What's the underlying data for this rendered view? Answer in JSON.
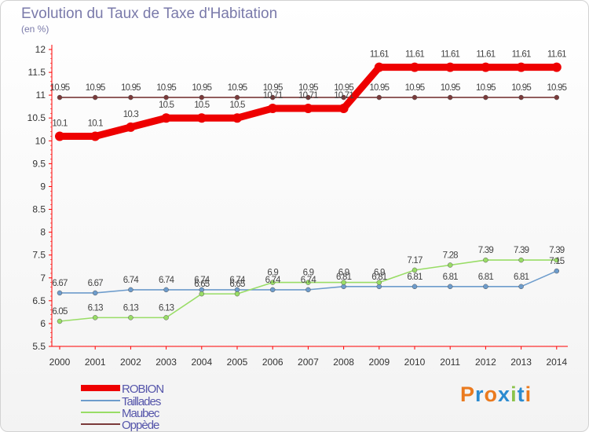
{
  "title": "Evolution du Taux de Taxe d'Habitation",
  "subtitle": "(en %)",
  "logo": {
    "text": "Proxiti",
    "letters": [
      "P",
      "r",
      "o",
      "x",
      "i",
      "t",
      "i"
    ],
    "colors": [
      "#ea7a1e",
      "#2b8bd0",
      "#ea7a1e",
      "#2b8bd0",
      "#8bc34a",
      "#2b8bd0",
      "#ea7a1e"
    ]
  },
  "chart_data": {
    "type": "line",
    "title": "Evolution du Taux de Taxe d'Habitation",
    "ylabel": "(en %)",
    "xlabel": "",
    "x": [
      "2000",
      "2001",
      "2002",
      "2003",
      "2004",
      "2005",
      "2006",
      "2007",
      "2008",
      "2009",
      "2010",
      "2011",
      "2012",
      "2013",
      "2014"
    ],
    "ylim": [
      5.5,
      12
    ],
    "yticks": [
      "5.5",
      "6",
      "6.5",
      "7",
      "7.5",
      "8",
      "8.5",
      "9",
      "9.5",
      "10",
      "10.5",
      "11",
      "11.5",
      "12"
    ],
    "grid": false,
    "legend": "bottom-left",
    "series": [
      {
        "name": "ROBION",
        "color": "#ee0000",
        "values": [
          10.1,
          10.1,
          10.3,
          10.5,
          10.5,
          10.5,
          10.71,
          10.71,
          10.71,
          11.61,
          11.61,
          11.61,
          11.61,
          11.61,
          11.61
        ],
        "labels": [
          "10.1",
          "10.1",
          "10.3",
          "10.5",
          "10.5",
          "10.5",
          "10.71",
          "10.71",
          "10.71",
          "11.61",
          "11.61",
          "11.61",
          "11.61",
          "11.61",
          "11.61"
        ]
      },
      {
        "name": "Taillades",
        "color": "#6d9ccc",
        "values": [
          6.67,
          6.67,
          6.74,
          6.74,
          6.74,
          6.74,
          6.74,
          6.74,
          6.81,
          6.81,
          6.81,
          6.81,
          6.81,
          6.81,
          7.15
        ],
        "labels": [
          "6.67",
          "6.67",
          "6.74",
          "6.74",
          "6.74",
          "6.74",
          "6.74",
          "6.74",
          "6.81",
          "6.81",
          "6.81",
          "6.81",
          "6.81",
          "6.81",
          "7.15"
        ]
      },
      {
        "name": "Maubec",
        "color": "#99dd66",
        "values": [
          6.05,
          6.13,
          6.13,
          6.13,
          6.65,
          6.65,
          6.9,
          6.9,
          6.9,
          6.9,
          7.17,
          7.28,
          7.39,
          7.39,
          7.39
        ],
        "labels": [
          "6.05",
          "6.13",
          "6.13",
          "6.13",
          "6.65",
          "6.65",
          "6.9",
          "6.9",
          "6.9",
          "6.9",
          "7.17",
          "7.28",
          "7.39",
          "7.39",
          "7.39"
        ]
      },
      {
        "name": "Oppède",
        "color": "#7a3a3a",
        "values": [
          10.95,
          10.95,
          10.95,
          10.95,
          10.95,
          10.95,
          10.95,
          10.95,
          10.95,
          10.95,
          10.95,
          10.95,
          10.95,
          10.95,
          10.95
        ],
        "labels": [
          "10.95",
          "10.95",
          "10.95",
          "10.95",
          "10.95",
          "10.95",
          "10.95",
          "10.95",
          "10.95",
          "10.95",
          "10.95",
          "10.95",
          "10.95",
          "10.95",
          "10.95"
        ]
      }
    ]
  }
}
